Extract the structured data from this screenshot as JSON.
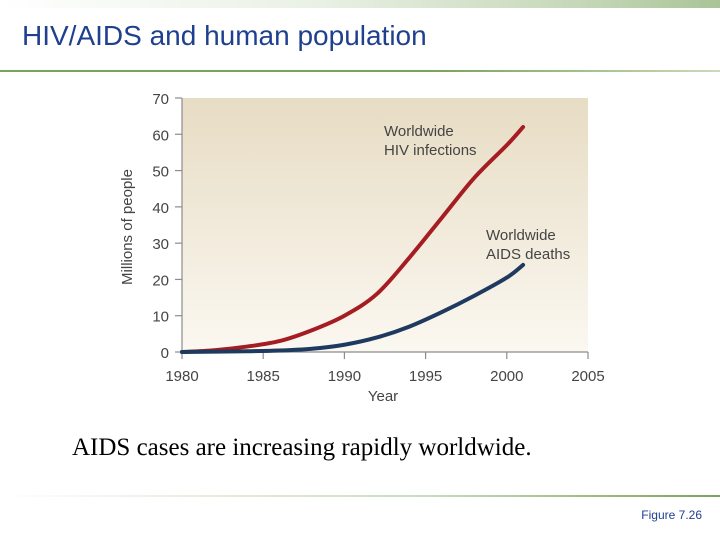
{
  "slide": {
    "title": "HIV/AIDS and human population",
    "caption": "AIDS cases are increasing rapidly worldwide.",
    "figure_label": "Figure 7.26"
  },
  "colors": {
    "title": "#1f3f8f",
    "hiv_line": "#a51d22",
    "aids_line": "#1f3a5f",
    "plot_background_top": "#e7dcc4",
    "plot_background_bottom": "#fbf8f1"
  },
  "chart_data": {
    "type": "line",
    "title": "",
    "xlabel": "Year",
    "ylabel": "Millions of people",
    "xlim": [
      1980,
      2005
    ],
    "ylim": [
      0,
      70
    ],
    "x_ticks": [
      1980,
      1985,
      1990,
      1995,
      2000,
      2005
    ],
    "y_ticks": [
      0,
      10,
      20,
      30,
      40,
      50,
      60,
      70
    ],
    "grid": false,
    "series": [
      {
        "name": "Worldwide HIV infections",
        "label_lines": [
          "Worldwide",
          "HIV infections"
        ],
        "color": "#a51d22",
        "x": [
          1980,
          1982,
          1984,
          1986,
          1988,
          1990,
          1992,
          1994,
          1996,
          1998,
          2000,
          2001
        ],
        "y": [
          0,
          0.5,
          1.5,
          3,
          6,
          10,
          16,
          26,
          37,
          48,
          57,
          62
        ]
      },
      {
        "name": "Worldwide AIDS deaths",
        "label_lines": [
          "Worldwide",
          "AIDS deaths"
        ],
        "color": "#1f3a5f",
        "x": [
          1980,
          1984,
          1986,
          1988,
          1990,
          1992,
          1994,
          1996,
          1998,
          2000,
          2001
        ],
        "y": [
          0,
          0.2,
          0.4,
          0.9,
          2,
          4,
          7,
          11,
          15.5,
          20.5,
          24
        ]
      }
    ]
  }
}
